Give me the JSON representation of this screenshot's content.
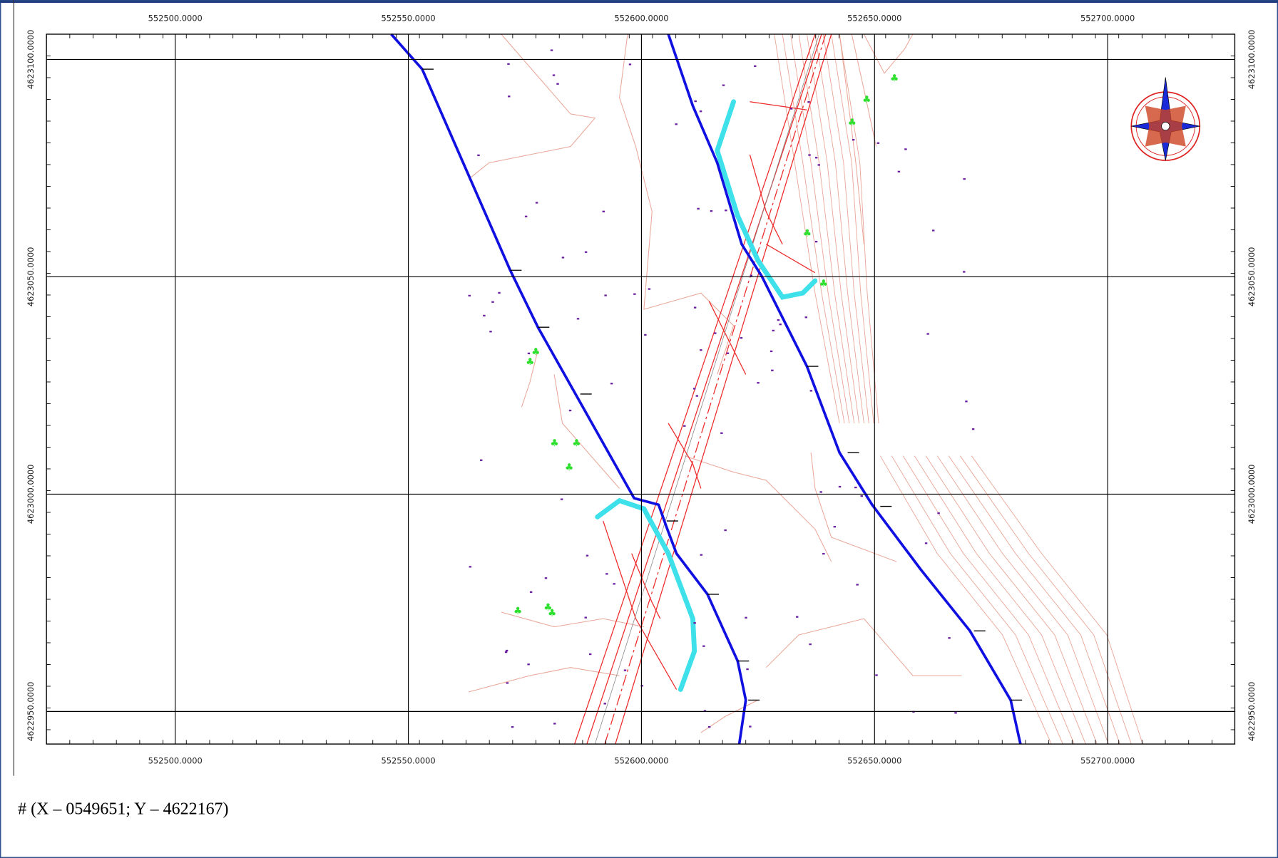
{
  "x_axis_labels": [
    "552500.0000",
    "552550.0000",
    "552600.0000",
    "552650.0000",
    "552700.0000"
  ],
  "y_axis_labels": [
    "4623100.0000",
    "4623050.0000",
    "4623000.0000",
    "4622950.0000"
  ],
  "caption": "# (X – 0549651; Y – 4622167)"
}
